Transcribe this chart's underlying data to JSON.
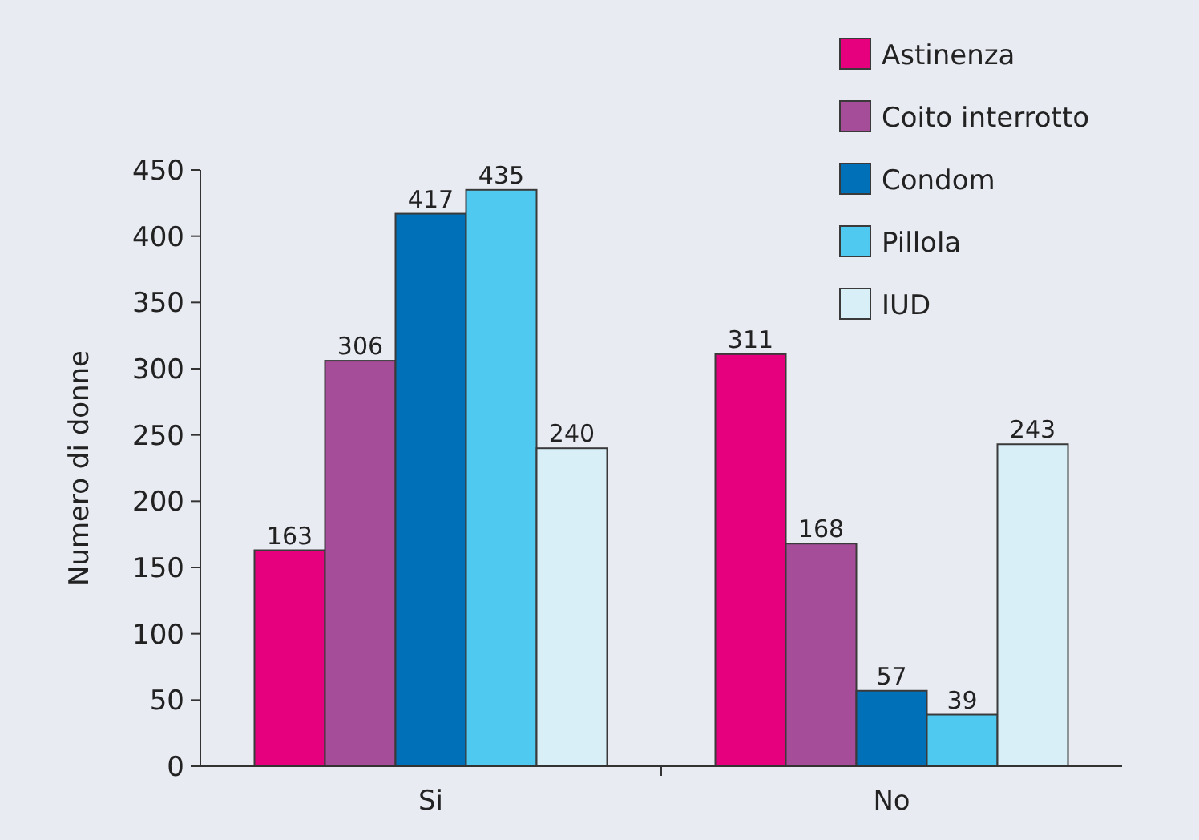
{
  "chart_data": {
    "type": "bar",
    "ylabel": "Numero di donne",
    "categories": [
      "Si",
      "No"
    ],
    "series": [
      {
        "name": "Astinenza",
        "color": "#e6007e",
        "values": [
          163,
          311
        ]
      },
      {
        "name": "Coito interrotto",
        "color": "#a64d9a",
        "values": [
          306,
          168
        ]
      },
      {
        "name": "Condom",
        "color": "#0070b8",
        "values": [
          417,
          57
        ]
      },
      {
        "name": "Pillola",
        "color": "#4fc9f0",
        "values": [
          435,
          39
        ]
      },
      {
        "name": "IUD",
        "color": "#d8eff8",
        "values": [
          240,
          243
        ]
      }
    ],
    "ylim": [
      0,
      450
    ],
    "yticks": [
      0,
      50,
      100,
      150,
      200,
      250,
      300,
      350,
      400,
      450
    ],
    "data_labels": true,
    "legend": "top right",
    "grid": false
  }
}
